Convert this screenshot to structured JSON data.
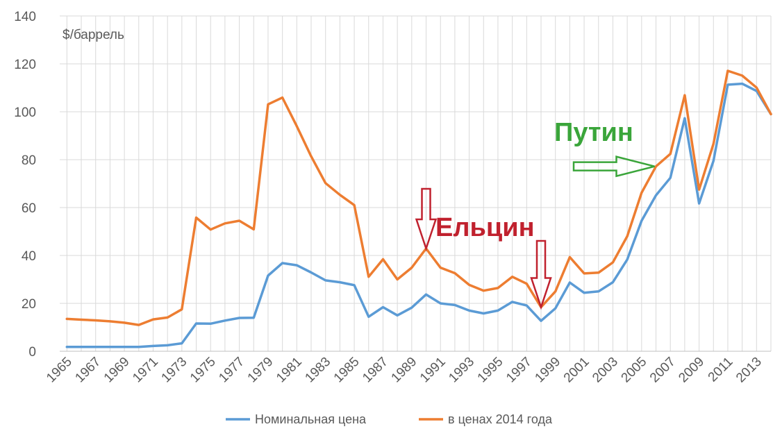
{
  "chart_data": {
    "type": "line",
    "title": "",
    "unit_label": "$/баррель",
    "xlabel": "",
    "ylabel": "",
    "ylim": [
      0,
      140
    ],
    "yticks": [
      0,
      20,
      40,
      60,
      80,
      100,
      120,
      140
    ],
    "xlim": [
      1965,
      2014
    ],
    "xticks": [
      1965,
      1967,
      1969,
      1971,
      1973,
      1975,
      1977,
      1979,
      1981,
      1983,
      1985,
      1987,
      1989,
      1991,
      1993,
      1995,
      1997,
      1999,
      2001,
      2003,
      2005,
      2007,
      2009,
      2011,
      2013
    ],
    "grid": true,
    "legend_position": "bottom",
    "x": [
      1965,
      1966,
      1967,
      1968,
      1969,
      1970,
      1971,
      1972,
      1973,
      1974,
      1975,
      1976,
      1977,
      1978,
      1979,
      1980,
      1981,
      1982,
      1983,
      1984,
      1985,
      1986,
      1987,
      1988,
      1989,
      1990,
      1991,
      1992,
      1993,
      1994,
      1995,
      1996,
      1997,
      1998,
      1999,
      2000,
      2001,
      2002,
      2003,
      2004,
      2005,
      2006,
      2007,
      2008,
      2009,
      2010,
      2011,
      2012,
      2013,
      2014
    ],
    "series": [
      {
        "name": "Номинальная цена",
        "color": "#5b9bd5",
        "values": [
          1.8,
          1.8,
          1.8,
          1.8,
          1.8,
          1.8,
          2.2,
          2.5,
          3.3,
          11.6,
          11.5,
          12.8,
          13.9,
          14,
          31.6,
          36.8,
          35.9,
          32.9,
          29.6,
          28.8,
          27.6,
          14.4,
          18.4,
          15,
          18.2,
          23.7,
          20,
          19.3,
          17,
          15.8,
          17,
          20.6,
          19.1,
          12.7,
          17.9,
          28.7,
          24.4,
          25,
          28.8,
          38.3,
          54.5,
          65.1,
          72.4,
          97.3,
          61.7,
          79.5,
          111.3,
          111.7,
          108.7,
          99
        ]
      },
      {
        "name": "в ценах 2014 года",
        "color": "#ed7d31",
        "values": [
          13.5,
          13.2,
          12.9,
          12.5,
          11.9,
          11.0,
          13.3,
          14.1,
          17.5,
          55.8,
          50.8,
          53.4,
          54.5,
          50.9,
          103.1,
          105.9,
          94,
          81.4,
          70.2,
          65.3,
          61,
          31.1,
          38.4,
          30,
          34.9,
          42.9,
          34.9,
          32.6,
          27.7,
          25.3,
          26.4,
          31.1,
          28.2,
          18.4,
          25,
          39.3,
          32.5,
          32.8,
          37.1,
          48,
          66.2,
          77.2,
          82.4,
          106.9,
          67.5,
          86.6,
          117.1,
          115.1,
          110.1,
          99
        ]
      }
    ],
    "annotations": [
      {
        "text": "Ельцин",
        "color": "#c0212e"
      },
      {
        "text": "Путин",
        "color": "#3aa53a"
      }
    ]
  }
}
